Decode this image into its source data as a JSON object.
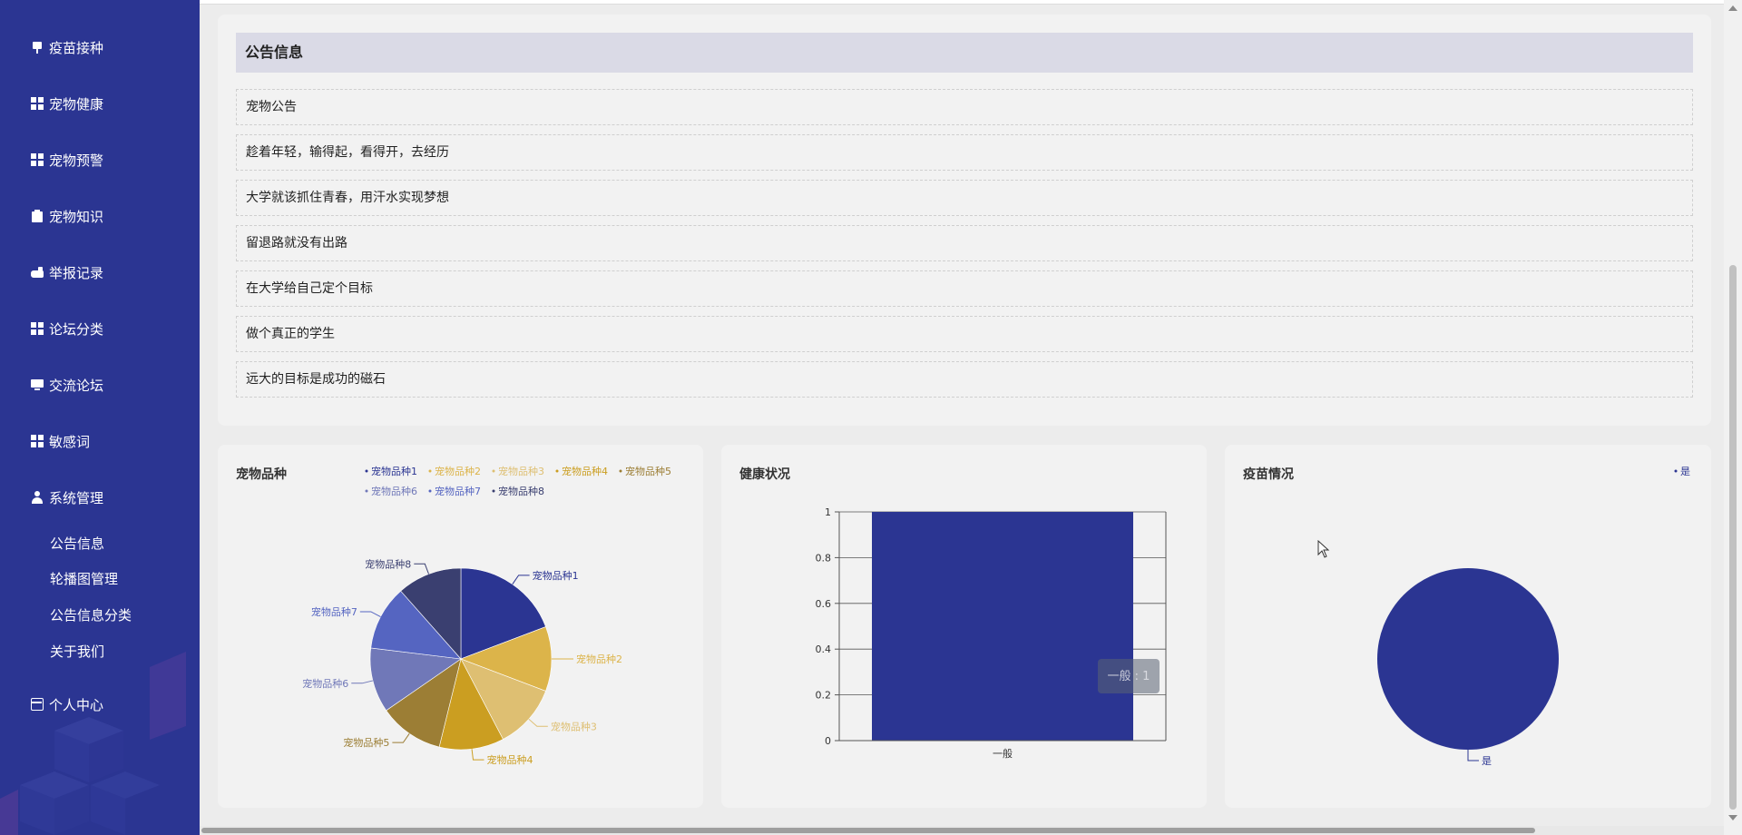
{
  "sidebar": {
    "items": [
      {
        "label": "疫苗接种",
        "icon": "syringe-icon"
      },
      {
        "label": "宠物健康",
        "icon": "grid-icon"
      },
      {
        "label": "宠物预警",
        "icon": "grid-icon"
      },
      {
        "label": "宠物知识",
        "icon": "clipboard-icon"
      },
      {
        "label": "举报记录",
        "icon": "hand-icon"
      },
      {
        "label": "论坛分类",
        "icon": "grid-icon"
      },
      {
        "label": "交流论坛",
        "icon": "monitor-icon"
      },
      {
        "label": "敏感词",
        "icon": "grid-icon"
      },
      {
        "label": "系统管理",
        "icon": "user-icon"
      }
    ],
    "sub_items": [
      {
        "label": "公告信息"
      },
      {
        "label": "轮播图管理"
      },
      {
        "label": "公告信息分类"
      },
      {
        "label": "关于我们"
      }
    ],
    "personal": {
      "label": "个人中心",
      "icon": "card-icon"
    }
  },
  "notice": {
    "title": "公告信息",
    "items": [
      "宠物公告",
      "趁着年轻，输得起，看得开，去经历",
      "大学就该抓住青春，用汗水实现梦想",
      "留退路就没有出路",
      "在大学给自己定个目标",
      "做个真正的学生",
      "远大的目标是成功的磁石"
    ]
  },
  "colors": {
    "sidebar_bg": "#2b3592",
    "primary": "#2b3592",
    "panel_bg": "#f2f2f2",
    "header_bg": "#dadae6"
  },
  "chart_data": [
    {
      "type": "pie",
      "title": "宠物品种",
      "legend_position": "top-right",
      "categories": [
        "宠物品种1",
        "宠物品种2",
        "宠物品种3",
        "宠物品种4",
        "宠物品种5",
        "宠物品种6",
        "宠物品种7",
        "宠物品种8"
      ],
      "values": [
        1,
        0.6,
        0.6,
        0.6,
        0.6,
        0.6,
        0.6,
        0.6
      ],
      "colors": [
        "#2b3592",
        "#dcb44a",
        "#debf72",
        "#cb9e21",
        "#9c7e35",
        "#7078b8",
        "#5565c1",
        "#3a3f70"
      ]
    },
    {
      "type": "bar",
      "title": "健康状况",
      "categories": [
        "一般"
      ],
      "values": [
        1
      ],
      "ylim": [
        0,
        1
      ],
      "yticks": [
        "0",
        "0.2",
        "0.4",
        "0.6",
        "0.8",
        "1"
      ],
      "tooltip": "一般 : 1",
      "color": "#2b3592"
    },
    {
      "type": "pie",
      "title": "疫苗情况",
      "legend_position": "top-right",
      "categories": [
        "是"
      ],
      "values": [
        1
      ],
      "colors": [
        "#2b3592"
      ]
    }
  ]
}
